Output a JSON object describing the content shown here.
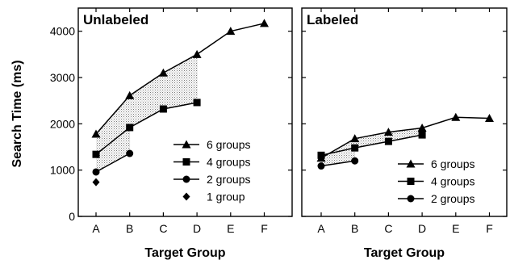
{
  "ylabel": "Search Time (ms)",
  "chart_data": [
    {
      "type": "line",
      "title": "Unlabeled",
      "xlabel": "Target Group",
      "ylabel": "Search Time (ms)",
      "categories": [
        "A",
        "B",
        "C",
        "D",
        "E",
        "F"
      ],
      "ylim": [
        0,
        4500
      ],
      "yticks": [
        0,
        1000,
        2000,
        3000,
        4000
      ],
      "legend_position": "bottom-right",
      "shading": "dotted fill between 6-group and 4-group curves (A–D) and between 4-group and 2-group curves (A–B)",
      "series": [
        {
          "name": "6 groups",
          "marker": "triangle",
          "values": [
            1780,
            2610,
            3100,
            3500,
            4000,
            4170
          ]
        },
        {
          "name": "4 groups",
          "marker": "square",
          "values": [
            1340,
            1920,
            2320,
            2460,
            null,
            null
          ]
        },
        {
          "name": "2 groups",
          "marker": "circle",
          "values": [
            960,
            1360,
            null,
            null,
            null,
            null
          ]
        },
        {
          "name": "1 group",
          "marker": "diamond",
          "values": [
            740,
            null,
            null,
            null,
            null,
            null
          ]
        }
      ]
    },
    {
      "type": "line",
      "title": "Labeled",
      "xlabel": "Target Group",
      "categories": [
        "A",
        "B",
        "C",
        "D",
        "E",
        "F"
      ],
      "ylim": [
        0,
        4500
      ],
      "yticks": [
        0,
        1000,
        2000,
        3000,
        4000
      ],
      "legend_position": "bottom-right",
      "shading": "dotted fill between 6-group and 4-group curves (A–D) and between 4-group and 2-group curves (A–B)",
      "series": [
        {
          "name": "6 groups",
          "marker": "triangle",
          "values": [
            1260,
            1680,
            1820,
            1910,
            2140,
            2120
          ]
        },
        {
          "name": "4 groups",
          "marker": "square",
          "values": [
            1320,
            1480,
            1620,
            1760,
            null,
            null
          ]
        },
        {
          "name": "2 groups",
          "marker": "circle",
          "values": [
            1090,
            1200,
            null,
            null,
            null,
            null
          ]
        }
      ]
    }
  ]
}
